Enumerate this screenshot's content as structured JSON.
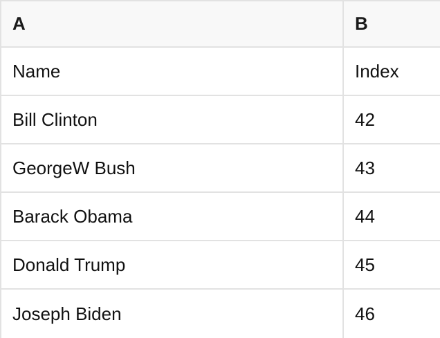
{
  "table": {
    "column_headers": [
      "A",
      "B"
    ],
    "rows": [
      {
        "a": "Name",
        "b": "Index"
      },
      {
        "a": "Bill Clinton",
        "b": "42"
      },
      {
        "a": "GeorgeW Bush",
        "b": "43"
      },
      {
        "a": "Barack Obama",
        "b": "44"
      },
      {
        "a": "Donald Trump",
        "b": "45"
      },
      {
        "a": "Joseph Biden",
        "b": "46"
      }
    ]
  },
  "colors": {
    "header_bg": "#f8f8f8",
    "border": "#e2e2e2",
    "text": "#111111",
    "row_bg": "#ffffff"
  }
}
